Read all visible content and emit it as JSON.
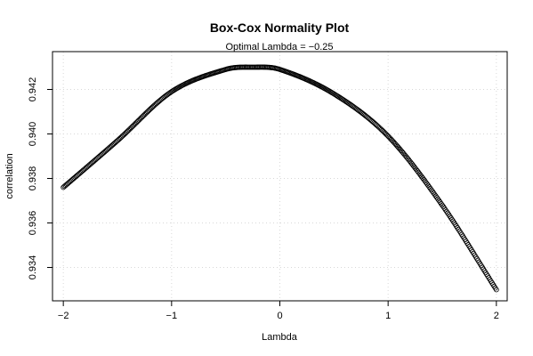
{
  "chart_data": {
    "type": "scatter",
    "title": "Box-Cox Normality Plot",
    "subtitle": "Optimal Lambda = −0.25",
    "xlabel": "Lambda",
    "ylabel": "correlation",
    "xlim": [
      -2.1,
      2.1
    ],
    "ylim": [
      0.9325,
      0.9437
    ],
    "x_ticks": [
      -2,
      -1,
      0,
      1,
      2
    ],
    "x_tick_labels": [
      "−2",
      "−1",
      "0",
      "1",
      "2"
    ],
    "y_ticks": [
      0.934,
      0.936,
      0.938,
      0.94,
      0.942
    ],
    "y_tick_labels": [
      "0.934",
      "0.936",
      "0.938",
      "0.940",
      "0.942"
    ],
    "grid": true,
    "series": [
      {
        "marker": "open-circle",
        "color": "#000000",
        "x_range": [
          -2,
          2
        ],
        "point_count": 401,
        "anchor_points": [
          {
            "x": -2.0,
            "y": 0.9376
          },
          {
            "x": -1.5,
            "y": 0.9397
          },
          {
            "x": -1.0,
            "y": 0.9419
          },
          {
            "x": -0.5,
            "y": 0.9429
          },
          {
            "x": -0.25,
            "y": 0.943
          },
          {
            "x": 0.0,
            "y": 0.9429
          },
          {
            "x": 0.5,
            "y": 0.9418
          },
          {
            "x": 1.0,
            "y": 0.9399
          },
          {
            "x": 1.5,
            "y": 0.9368
          },
          {
            "x": 2.0,
            "y": 0.933
          }
        ]
      }
    ]
  }
}
